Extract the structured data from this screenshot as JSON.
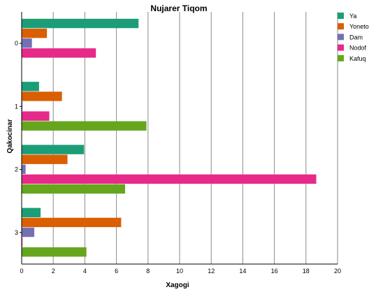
{
  "chart_data": {
    "type": "bar",
    "orientation": "horizontal",
    "title": "Nujarer Tiqom",
    "xlabel": "Xagogi",
    "ylabel": "Qakocinar",
    "categories": [
      "0",
      "1",
      "2",
      "3"
    ],
    "xlim": [
      0,
      20
    ],
    "x_ticks": [
      "0",
      "2",
      "4",
      "6",
      "8",
      "10",
      "12",
      "14",
      "16",
      "18",
      "20"
    ],
    "grid": true,
    "legend_position": "top-right",
    "series": [
      {
        "name": "Ya",
        "color": "#1b9e77",
        "values": [
          7.4,
          1.1,
          3.95,
          1.2
        ]
      },
      {
        "name": "Yoneto",
        "color": "#d95f02",
        "values": [
          1.6,
          2.55,
          2.9,
          6.3
        ]
      },
      {
        "name": "Dam",
        "color": "#7570b3",
        "values": [
          0.65,
          0.05,
          0.25,
          0.8
        ]
      },
      {
        "name": "Nodof",
        "color": "#e7298a",
        "values": [
          4.7,
          1.75,
          18.65,
          0.05
        ]
      },
      {
        "name": "Kafuq",
        "color": "#66a61e",
        "values": [
          0,
          7.9,
          6.55,
          4.1
        ]
      }
    ]
  }
}
